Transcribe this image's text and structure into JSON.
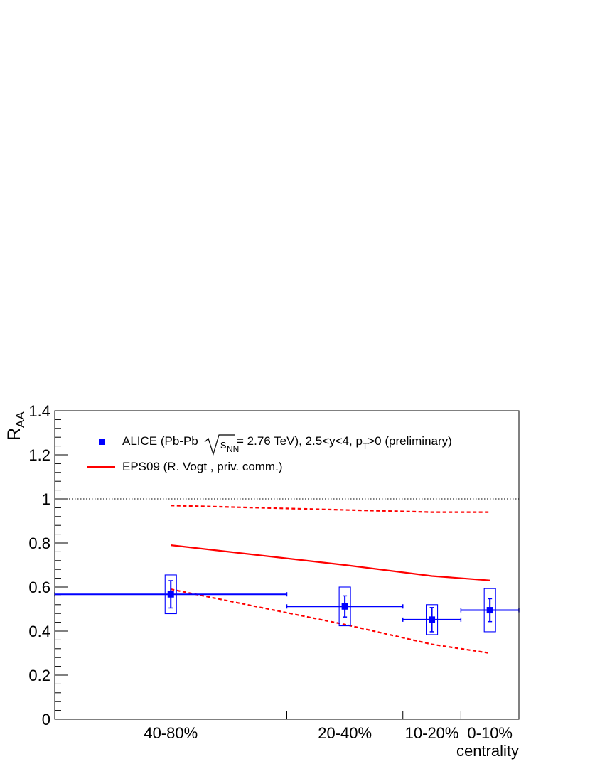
{
  "chart_data": {
    "type": "scatter",
    "xlabel": "centrality",
    "ylabel": "R",
    "ylabel_sub": "AA",
    "ylim": [
      0,
      1.4
    ],
    "xlim": [
      0,
      80
    ],
    "y_ticks": [
      "0",
      "0.2",
      "0.4",
      "0.6",
      "0.8",
      "1",
      "1.2",
      "1.4"
    ],
    "categories": [
      {
        "label": "40-80%",
        "x": 60
      },
      {
        "label": "20-40%",
        "x": 30
      },
      {
        "label": "10-20%",
        "x": 15
      },
      {
        "label": "0-10%",
        "x": 5
      }
    ],
    "bin_edges": [
      0,
      10,
      20,
      40,
      80
    ],
    "reference_line": {
      "y": 1.0,
      "style": "dotted"
    },
    "series": [
      {
        "name": "ALICE (Pb-Pb",
        "name_suffix": " = 2.76 TeV), 2.5<y<4, p",
        "name_end": ">0 (preliminary)",
        "sqrt_label": "s",
        "sqrt_sub": "NN",
        "pt_sub": "T",
        "color": "#0000ff",
        "marker": "square",
        "points": [
          {
            "x": 60,
            "xerr_lo": 20,
            "xerr_hi": 20,
            "y": 0.567,
            "stat": 0.062,
            "syst": 0.088,
            "x_center": 40
          },
          {
            "x": 30,
            "xerr_lo": 10,
            "xerr_hi": 10,
            "y": 0.512,
            "stat": 0.048,
            "syst": 0.088
          },
          {
            "x": 15,
            "xerr_lo": 5,
            "xerr_hi": 5,
            "y": 0.452,
            "stat": 0.055,
            "syst": 0.068
          },
          {
            "x": 5,
            "xerr_lo": 5,
            "xerr_hi": 5,
            "y": 0.495,
            "stat": 0.052,
            "syst": 0.098
          }
        ]
      },
      {
        "name": "EPS09 (R. Vogt , priv. comm.)",
        "color": "#ff0000",
        "central": [
          [
            60,
            0.79
          ],
          [
            30,
            0.7
          ],
          [
            15,
            0.65
          ],
          [
            5,
            0.63
          ]
        ],
        "upper": [
          [
            60,
            0.97
          ],
          [
            30,
            0.95
          ],
          [
            15,
            0.94
          ],
          [
            5,
            0.94
          ]
        ],
        "lower": [
          [
            60,
            0.59
          ],
          [
            30,
            0.43
          ],
          [
            15,
            0.34
          ],
          [
            5,
            0.3
          ]
        ]
      }
    ],
    "legend_position": "top-left",
    "grid": false
  }
}
